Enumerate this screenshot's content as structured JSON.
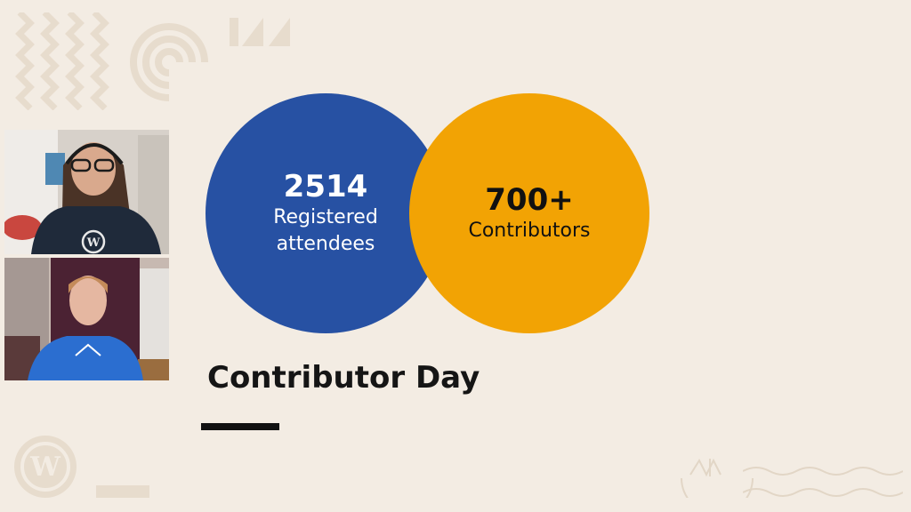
{
  "colors": {
    "background": "#f3ece3",
    "decor": "#e7dccd",
    "stat_blue": "#2751a3",
    "stat_orange": "#f2a304",
    "title_text": "#151515"
  },
  "participants": [
    {
      "name": "participant-1",
      "description_icon": "video-feed"
    },
    {
      "name": "participant-2",
      "description_icon": "video-feed"
    }
  ],
  "stats": [
    {
      "value": "2514",
      "label_line1": "Registered",
      "label_line2": "attendees"
    },
    {
      "value": "700+",
      "label_line1": "Contributors"
    }
  ],
  "slide": {
    "title": "Contributor Day"
  },
  "icons": {
    "corner_logo": "wordpress-logo-icon",
    "stamp": "wordcamp-stamp-icon"
  }
}
